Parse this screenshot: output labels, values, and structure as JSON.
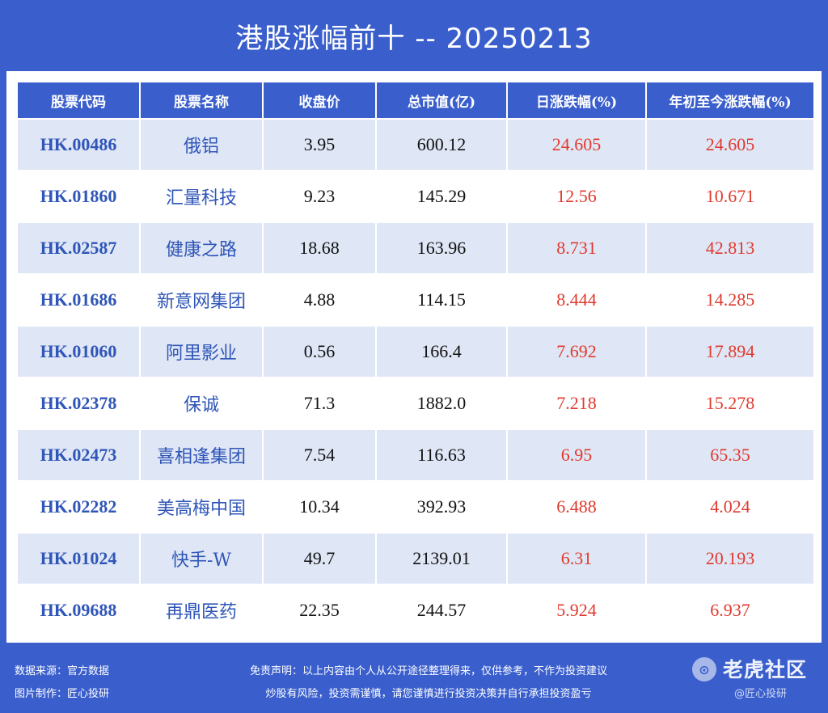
{
  "title": "港股涨幅前十 -- 20250213",
  "colors": {
    "accent": "#3a5fcd",
    "row_alt": "#dfe6f5",
    "code": "#2f56b8",
    "up": "#e03a2e"
  },
  "table": {
    "headers": [
      "股票代码",
      "股票名称",
      "收盘价",
      "总市值(亿)",
      "日涨跌幅(%)",
      "年初至今涨跌幅(%)"
    ],
    "rows": [
      [
        "HK.00486",
        "俄铝",
        "3.95",
        "600.12",
        "24.605",
        "24.605"
      ],
      [
        "HK.01860",
        "汇量科技",
        "9.23",
        "145.29",
        "12.56",
        "10.671"
      ],
      [
        "HK.02587",
        "健康之路",
        "18.68",
        "163.96",
        "8.731",
        "42.813"
      ],
      [
        "HK.01686",
        "新意网集团",
        "4.88",
        "114.15",
        "8.444",
        "14.285"
      ],
      [
        "HK.01060",
        "阿里影业",
        "0.56",
        "166.4",
        "7.692",
        "17.894"
      ],
      [
        "HK.02378",
        "保诚",
        "71.3",
        "1882.0",
        "7.218",
        "15.278"
      ],
      [
        "HK.02473",
        "喜相逢集团",
        "7.54",
        "116.63",
        "6.95",
        "65.35"
      ],
      [
        "HK.02282",
        "美高梅中国",
        "10.34",
        "392.93",
        "6.488",
        "4.024"
      ],
      [
        "HK.01024",
        "快手-W",
        "49.7",
        "2139.01",
        "6.31",
        "20.193"
      ],
      [
        "HK.09688",
        "再鼎医药",
        "22.35",
        "244.57",
        "5.924",
        "6.937"
      ]
    ]
  },
  "footer": {
    "source": "数据来源：官方数据",
    "maker": "图片制作：匠心投研",
    "disclaimer_line1": "免责声明：以上内容由个人从公开途径整理得来，仅供参考，不作为投资建议",
    "disclaimer_line2": "炒股有风险，投资需谨慎，请您谨慎进行投资决策并自行承担投资盈亏",
    "brand": "老虎社区",
    "brand_icon": "tiger-logo-icon",
    "watermark": "@匠心投研"
  }
}
